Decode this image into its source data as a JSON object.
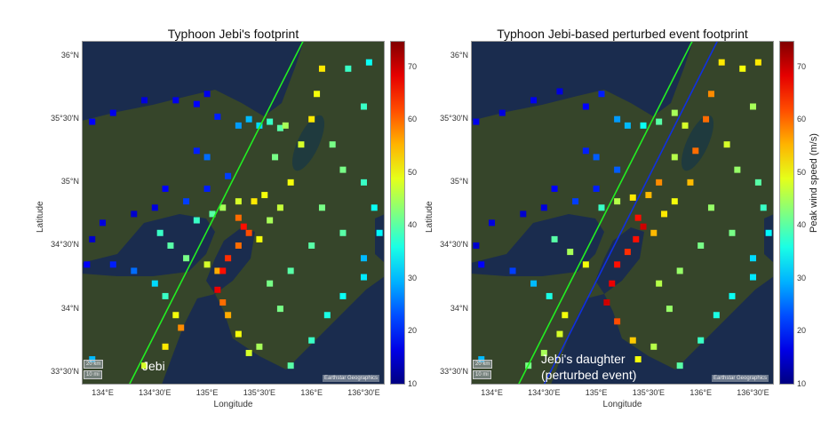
{
  "panels": [
    {
      "title": "Typhoon Jebi's footprint",
      "annotation_lines": [
        "Jebi"
      ],
      "tracks": [
        {
          "color": "#22ee22",
          "start": [
            135.92,
            36.12
          ],
          "end": [
            134.255,
            33.4
          ]
        }
      ],
      "points": [
        [
          133.9,
          35.48,
          18
        ],
        [
          134.1,
          35.55,
          17
        ],
        [
          134.4,
          35.65,
          16
        ],
        [
          134.7,
          35.65,
          17
        ],
        [
          134.9,
          35.62,
          18
        ],
        [
          135.0,
          35.7,
          17
        ],
        [
          135.1,
          35.52,
          20
        ],
        [
          135.3,
          35.45,
          28
        ],
        [
          135.4,
          35.5,
          30
        ],
        [
          135.5,
          35.45,
          32
        ],
        [
          135.6,
          35.48,
          38
        ],
        [
          135.7,
          35.43,
          40
        ],
        [
          134.9,
          35.25,
          20
        ],
        [
          135.0,
          35.2,
          25
        ],
        [
          135.2,
          35.05,
          22
        ],
        [
          135.0,
          34.95,
          20
        ],
        [
          134.6,
          34.95,
          18
        ],
        [
          134.8,
          34.85,
          22
        ],
        [
          134.5,
          34.8,
          16
        ],
        [
          134.3,
          34.75,
          15
        ],
        [
          134.0,
          34.68,
          16
        ],
        [
          133.9,
          34.55,
          15
        ],
        [
          133.85,
          34.35,
          18
        ],
        [
          134.1,
          34.35,
          20
        ],
        [
          134.3,
          34.3,
          25
        ],
        [
          134.5,
          34.2,
          32
        ],
        [
          134.6,
          34.1,
          38
        ],
        [
          134.7,
          33.95,
          50
        ],
        [
          134.75,
          33.85,
          58
        ],
        [
          134.6,
          33.7,
          52
        ],
        [
          134.4,
          33.55,
          48
        ],
        [
          134.55,
          34.6,
          38
        ],
        [
          134.65,
          34.5,
          40
        ],
        [
          134.8,
          34.4,
          42
        ],
        [
          135.0,
          34.35,
          48
        ],
        [
          135.1,
          34.3,
          56
        ],
        [
          134.9,
          34.7,
          38
        ],
        [
          135.05,
          34.75,
          40
        ],
        [
          135.15,
          34.8,
          45
        ],
        [
          135.3,
          34.85,
          48
        ],
        [
          135.45,
          34.85,
          52
        ],
        [
          135.55,
          34.9,
          50
        ],
        [
          135.3,
          34.72,
          60
        ],
        [
          135.35,
          34.65,
          66
        ],
        [
          135.4,
          34.6,
          62
        ],
        [
          135.3,
          34.5,
          60
        ],
        [
          135.2,
          34.4,
          64
        ],
        [
          135.15,
          34.3,
          66
        ],
        [
          135.1,
          34.15,
          68
        ],
        [
          135.15,
          34.05,
          60
        ],
        [
          135.2,
          33.95,
          56
        ],
        [
          135.3,
          33.8,
          50
        ],
        [
          135.4,
          33.65,
          48
        ],
        [
          135.5,
          34.55,
          50
        ],
        [
          135.6,
          34.7,
          45
        ],
        [
          135.7,
          34.8,
          47
        ],
        [
          135.8,
          35.0,
          50
        ],
        [
          135.9,
          35.3,
          48
        ],
        [
          136.0,
          35.5,
          52
        ],
        [
          136.05,
          35.7,
          50
        ],
        [
          136.1,
          35.9,
          52
        ],
        [
          135.75,
          35.45,
          45
        ],
        [
          135.65,
          35.2,
          42
        ],
        [
          136.2,
          35.3,
          42
        ],
        [
          136.3,
          35.1,
          42
        ],
        [
          136.5,
          35.0,
          38
        ],
        [
          136.6,
          34.8,
          35
        ],
        [
          136.65,
          34.6,
          34
        ],
        [
          136.5,
          34.4,
          30
        ],
        [
          136.3,
          34.6,
          40
        ],
        [
          136.1,
          34.8,
          42
        ],
        [
          136.0,
          34.5,
          40
        ],
        [
          135.8,
          34.3,
          40
        ],
        [
          135.6,
          34.2,
          42
        ],
        [
          135.7,
          34.0,
          42
        ],
        [
          135.5,
          33.7,
          45
        ],
        [
          135.8,
          33.55,
          40
        ],
        [
          136.0,
          33.75,
          38
        ],
        [
          136.15,
          33.95,
          36
        ],
        [
          136.3,
          34.1,
          35
        ],
        [
          136.5,
          34.25,
          33
        ],
        [
          136.35,
          35.9,
          38
        ],
        [
          136.55,
          35.95,
          35
        ],
        [
          136.5,
          35.6,
          38
        ],
        [
          133.9,
          33.6,
          30
        ]
      ]
    },
    {
      "title": "Typhoon Jebi-based perturbed event footprint",
      "annotation_lines": [
        "Jebi's daughter",
        "(perturbed event)"
      ],
      "tracks": [
        {
          "color": "#22ee22",
          "start": [
            135.92,
            36.12
          ],
          "end": [
            134.255,
            33.4
          ]
        },
        {
          "color": "#1030e0",
          "start": [
            136.16,
            36.12
          ],
          "end": [
            134.5,
            33.4
          ]
        }
      ],
      "points": [
        [
          133.85,
          35.48,
          17
        ],
        [
          134.1,
          35.55,
          16
        ],
        [
          134.4,
          35.65,
          17
        ],
        [
          134.65,
          35.72,
          16
        ],
        [
          134.9,
          35.6,
          18
        ],
        [
          135.05,
          35.7,
          20
        ],
        [
          135.2,
          35.5,
          28
        ],
        [
          135.3,
          35.45,
          30
        ],
        [
          135.45,
          35.45,
          35
        ],
        [
          135.6,
          35.48,
          40
        ],
        [
          135.75,
          35.55,
          45
        ],
        [
          134.9,
          35.25,
          20
        ],
        [
          135.0,
          35.2,
          24
        ],
        [
          135.2,
          35.1,
          24
        ],
        [
          135.0,
          34.95,
          20
        ],
        [
          134.6,
          34.95,
          18
        ],
        [
          134.8,
          34.85,
          22
        ],
        [
          134.5,
          34.8,
          16
        ],
        [
          134.3,
          34.75,
          15
        ],
        [
          134.0,
          34.68,
          16
        ],
        [
          133.85,
          34.5,
          15
        ],
        [
          133.9,
          34.35,
          18
        ],
        [
          134.2,
          34.3,
          22
        ],
        [
          134.4,
          34.2,
          30
        ],
        [
          134.55,
          34.1,
          36
        ],
        [
          134.7,
          33.95,
          50
        ],
        [
          134.65,
          33.8,
          48
        ],
        [
          134.5,
          33.65,
          45
        ],
        [
          134.35,
          33.55,
          42
        ],
        [
          134.6,
          34.55,
          40
        ],
        [
          134.75,
          34.45,
          45
        ],
        [
          134.9,
          34.35,
          50
        ],
        [
          135.05,
          34.8,
          38
        ],
        [
          135.2,
          34.85,
          46
        ],
        [
          135.35,
          34.88,
          52
        ],
        [
          135.5,
          34.9,
          55
        ],
        [
          135.6,
          35.0,
          58
        ],
        [
          135.4,
          34.72,
          66
        ],
        [
          135.45,
          34.65,
          70
        ],
        [
          135.38,
          34.55,
          66
        ],
        [
          135.3,
          34.45,
          64
        ],
        [
          135.2,
          34.35,
          66
        ],
        [
          135.15,
          34.2,
          68
        ],
        [
          135.1,
          34.05,
          70
        ],
        [
          135.2,
          33.9,
          62
        ],
        [
          135.35,
          33.75,
          54
        ],
        [
          135.4,
          33.6,
          50
        ],
        [
          135.55,
          34.6,
          55
        ],
        [
          135.65,
          34.75,
          52
        ],
        [
          135.75,
          34.85,
          50
        ],
        [
          135.9,
          35.0,
          55
        ],
        [
          135.95,
          35.25,
          60
        ],
        [
          136.05,
          35.5,
          60
        ],
        [
          136.1,
          35.7,
          58
        ],
        [
          136.2,
          35.95,
          52
        ],
        [
          135.85,
          35.45,
          48
        ],
        [
          135.75,
          35.2,
          46
        ],
        [
          136.25,
          35.3,
          48
        ],
        [
          136.35,
          35.1,
          44
        ],
        [
          136.55,
          35.0,
          40
        ],
        [
          136.6,
          34.8,
          38
        ],
        [
          136.65,
          34.6,
          34
        ],
        [
          136.5,
          34.4,
          32
        ],
        [
          136.3,
          34.6,
          42
        ],
        [
          136.1,
          34.8,
          44
        ],
        [
          136.0,
          34.5,
          42
        ],
        [
          135.8,
          34.3,
          44
        ],
        [
          135.6,
          34.2,
          46
        ],
        [
          135.7,
          34.0,
          44
        ],
        [
          135.55,
          33.7,
          46
        ],
        [
          135.8,
          33.55,
          40
        ],
        [
          136.0,
          33.75,
          38
        ],
        [
          136.15,
          33.95,
          36
        ],
        [
          136.3,
          34.1,
          35
        ],
        [
          136.5,
          34.25,
          33
        ],
        [
          136.4,
          35.9,
          50
        ],
        [
          136.55,
          35.95,
          52
        ],
        [
          136.5,
          35.6,
          45
        ],
        [
          133.9,
          33.6,
          30
        ]
      ]
    }
  ],
  "axes": {
    "xlabel": "Longitude",
    "ylabel": "Latitude",
    "xticks": [
      "134°E",
      "134°30'E",
      "135°E",
      "135°30'E",
      "136°E",
      "136°30'E"
    ],
    "yticks": [
      "36°N",
      "35°30'N",
      "35°N",
      "34°30'N",
      "34°N",
      "33°30'N"
    ],
    "xlim": [
      133.8,
      136.7
    ],
    "ylim": [
      33.4,
      36.12
    ]
  },
  "colorbar": {
    "label": "Peak wind speed (m/s)",
    "colormap": "jet",
    "range": [
      10,
      75
    ],
    "ticks": [
      "10",
      "20",
      "30",
      "40",
      "50",
      "60",
      "70"
    ]
  },
  "basemap": {
    "scale_km": "20 km",
    "scale_mi": "10 mi",
    "attribution": "Earthstar Geographics",
    "ocean_color": "#1a2c4e",
    "land_color": "#36452a"
  }
}
